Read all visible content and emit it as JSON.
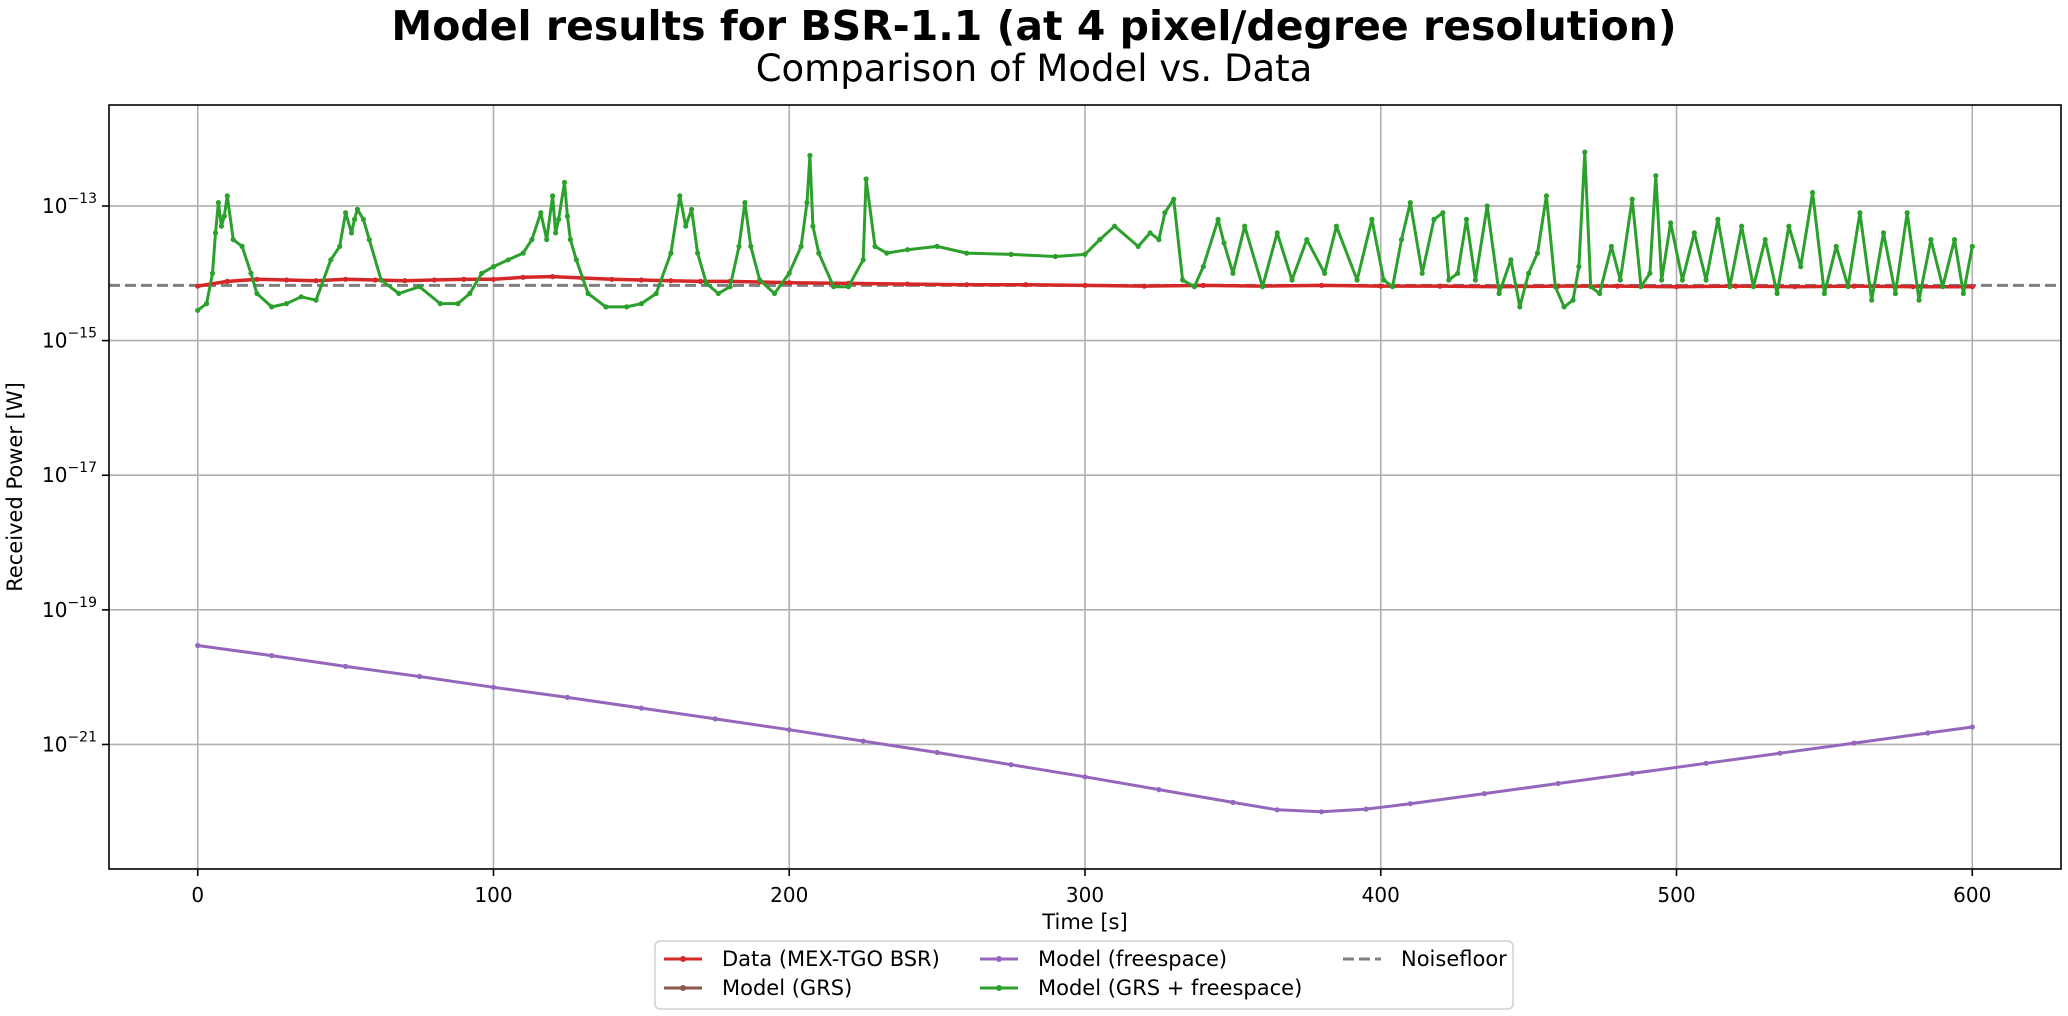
{
  "chart_data": {
    "type": "line",
    "title": "Model results for BSR-1.1 (at 4 pixel/degree resolution)",
    "subtitle": "Comparison of Model vs. Data",
    "xlabel": "Time [s]",
    "ylabel": "Received Power [W]",
    "xlim": [
      -30,
      630
    ],
    "ylim_log10": [
      -22.85,
      -11.5
    ],
    "yscale": "log",
    "grid": true,
    "legend_position": "below",
    "x_ticks": [
      0,
      100,
      200,
      300,
      400,
      500,
      600
    ],
    "y_ticks": [
      {
        "mantissa": "10",
        "exp": "−13",
        "log10": -13
      },
      {
        "mantissa": "10",
        "exp": "−15",
        "log10": -15
      },
      {
        "mantissa": "10",
        "exp": "−17",
        "log10": -17
      },
      {
        "mantissa": "10",
        "exp": "−19",
        "log10": -19
      },
      {
        "mantissa": "10",
        "exp": "−21",
        "log10": -21
      }
    ],
    "noisefloor_log10": -14.18,
    "series": [
      {
        "name": "Data (MEX-TGO BSR)",
        "color": "#d62728",
        "style": "line-dot",
        "x": [
          0,
          10,
          20,
          30,
          40,
          50,
          60,
          70,
          80,
          90,
          100,
          110,
          120,
          130,
          140,
          150,
          160,
          170,
          180,
          190,
          200,
          220,
          240,
          260,
          280,
          300,
          320,
          340,
          360,
          380,
          400,
          420,
          440,
          460,
          480,
          500,
          520,
          540,
          560,
          580,
          600
        ],
        "log10_y": [
          -14.19,
          -14.12,
          -14.09,
          -14.1,
          -14.11,
          -14.09,
          -14.1,
          -14.11,
          -14.1,
          -14.09,
          -14.09,
          -14.06,
          -14.05,
          -14.07,
          -14.09,
          -14.1,
          -14.11,
          -14.12,
          -14.12,
          -14.13,
          -14.14,
          -14.15,
          -14.16,
          -14.17,
          -14.17,
          -14.18,
          -14.19,
          -14.18,
          -14.19,
          -14.18,
          -14.19,
          -14.19,
          -14.2,
          -14.19,
          -14.19,
          -14.2,
          -14.19,
          -14.2,
          -14.19,
          -14.2,
          -14.2
        ]
      },
      {
        "name": "Model (GRS)",
        "color": "#8c564b",
        "style": "line-dot",
        "x": [],
        "log10_y": []
      },
      {
        "name": "Model (freespace)",
        "color": "#9467bd",
        "style": "line-dot",
        "x": [
          0,
          25,
          50,
          75,
          100,
          125,
          150,
          175,
          200,
          225,
          250,
          275,
          300,
          325,
          350,
          365,
          380,
          395,
          410,
          435,
          460,
          485,
          510,
          535,
          560,
          585,
          600
        ],
        "log10_y": [
          -19.53,
          -19.68,
          -19.84,
          -19.99,
          -20.15,
          -20.3,
          -20.46,
          -20.62,
          -20.78,
          -20.95,
          -21.12,
          -21.3,
          -21.48,
          -21.67,
          -21.86,
          -21.97,
          -22.0,
          -21.96,
          -21.88,
          -21.73,
          -21.58,
          -21.43,
          -21.28,
          -21.13,
          -20.98,
          -20.83,
          -20.74
        ]
      },
      {
        "name": "Model (GRS + freespace)",
        "color": "#2ca02c",
        "style": "line-dot",
        "x": [
          0,
          3,
          5,
          6,
          7,
          8,
          9,
          10,
          12,
          15,
          18,
          20,
          25,
          30,
          35,
          40,
          45,
          48,
          50,
          52,
          53,
          54,
          56,
          58,
          62,
          68,
          75,
          82,
          88,
          92,
          96,
          100,
          105,
          110,
          113,
          116,
          118,
          120,
          121,
          122,
          124,
          125,
          126,
          128,
          132,
          138,
          145,
          150,
          155,
          160,
          163,
          165,
          167,
          169,
          172,
          176,
          180,
          183,
          185,
          187,
          190,
          195,
          200,
          204,
          206,
          207,
          208,
          210,
          215,
          220,
          225,
          226,
          229,
          233,
          240,
          250,
          260,
          275,
          290,
          300,
          305,
          310,
          318,
          322,
          325,
          327,
          330,
          333,
          337,
          340,
          345,
          347,
          350,
          354,
          360,
          365,
          370,
          375,
          381,
          385,
          392,
          397,
          401,
          404,
          407,
          410,
          414,
          418,
          421,
          423,
          426,
          429,
          432,
          436,
          440,
          444,
          447,
          450,
          453,
          456,
          459,
          462,
          465,
          467,
          469,
          471,
          474,
          478,
          481,
          485,
          488,
          491,
          493,
          495,
          498,
          502,
          506,
          510,
          514,
          518,
          522,
          526,
          530,
          534,
          538,
          542,
          546,
          550,
          554,
          558,
          562,
          566,
          570,
          574,
          578,
          582,
          586,
          590,
          594,
          597,
          600
        ],
        "log10_y": [
          -14.55,
          -14.45,
          -14.0,
          -13.4,
          -12.95,
          -13.3,
          -13.15,
          -12.85,
          -13.5,
          -13.6,
          -14.0,
          -14.3,
          -14.5,
          -14.45,
          -14.35,
          -14.4,
          -13.8,
          -13.6,
          -13.1,
          -13.4,
          -13.2,
          -13.05,
          -13.2,
          -13.5,
          -14.1,
          -14.3,
          -14.2,
          -14.45,
          -14.45,
          -14.3,
          -14.0,
          -13.9,
          -13.8,
          -13.7,
          -13.5,
          -13.1,
          -13.5,
          -12.85,
          -13.4,
          -13.2,
          -12.65,
          -13.15,
          -13.5,
          -13.8,
          -14.3,
          -14.5,
          -14.5,
          -14.45,
          -14.3,
          -13.7,
          -12.85,
          -13.3,
          -13.05,
          -13.7,
          -14.15,
          -14.3,
          -14.2,
          -13.6,
          -12.95,
          -13.6,
          -14.1,
          -14.3,
          -14.0,
          -13.6,
          -12.95,
          -12.25,
          -13.3,
          -13.7,
          -14.2,
          -14.2,
          -13.8,
          -12.6,
          -13.6,
          -13.7,
          -13.65,
          -13.6,
          -13.7,
          -13.72,
          -13.75,
          -13.72,
          -13.5,
          -13.3,
          -13.6,
          -13.4,
          -13.5,
          -13.1,
          -12.9,
          -14.1,
          -14.2,
          -13.9,
          -13.2,
          -13.55,
          -14.0,
          -13.3,
          -14.2,
          -13.4,
          -14.1,
          -13.5,
          -14.0,
          -13.3,
          -14.1,
          -13.2,
          -14.1,
          -14.2,
          -13.5,
          -12.95,
          -14.0,
          -13.2,
          -13.1,
          -14.1,
          -14.0,
          -13.2,
          -14.1,
          -13.0,
          -14.3,
          -13.8,
          -14.5,
          -14.0,
          -13.7,
          -12.85,
          -14.2,
          -14.5,
          -14.4,
          -13.9,
          -12.2,
          -14.2,
          -14.3,
          -13.6,
          -14.1,
          -12.9,
          -14.2,
          -14.0,
          -12.55,
          -14.1,
          -13.25,
          -14.1,
          -13.4,
          -14.1,
          -13.2,
          -14.2,
          -13.3,
          -14.2,
          -13.5,
          -14.3,
          -13.3,
          -13.9,
          -12.8,
          -14.3,
          -13.6,
          -14.2,
          -13.1,
          -14.4,
          -13.4,
          -14.3,
          -13.1,
          -14.4,
          -13.5,
          -14.2,
          -13.5,
          -14.3,
          -13.6,
          -14.4,
          -13.7,
          -13.7
        ]
      },
      {
        "name": "Noisefloor",
        "color": "#7f7f7f",
        "style": "dashed"
      }
    ]
  }
}
